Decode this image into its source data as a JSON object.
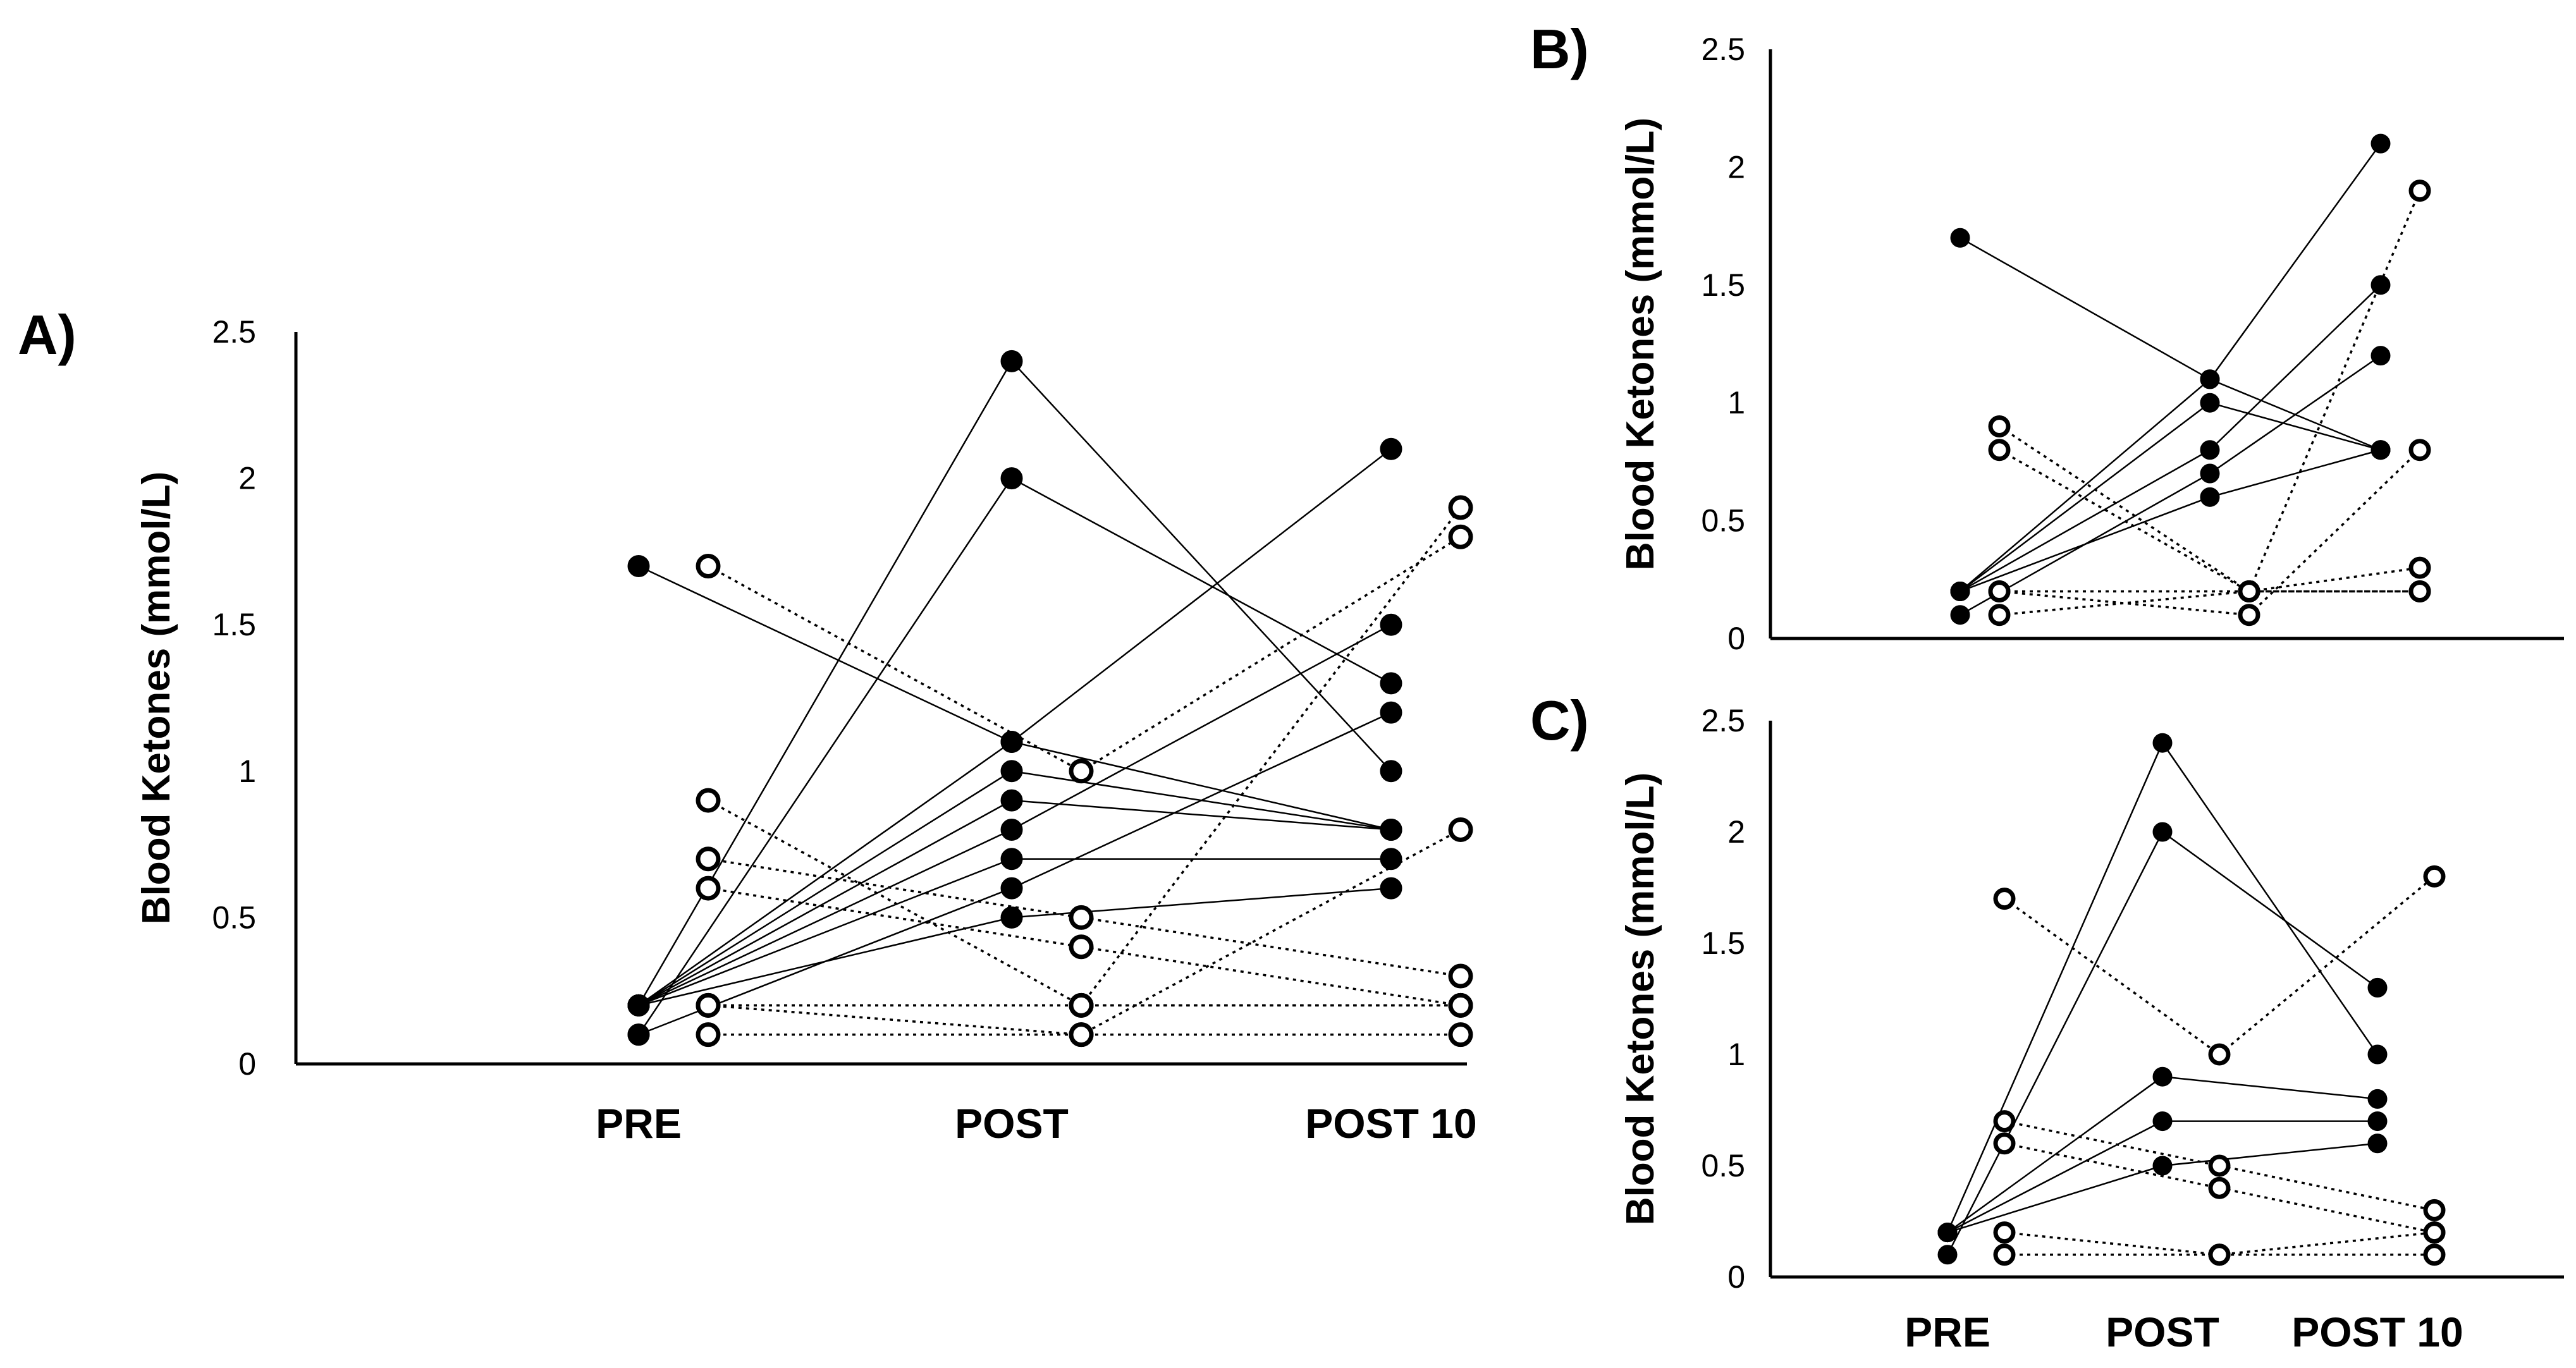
{
  "chart_data": [
    {
      "panel": "A)",
      "type": "line",
      "ylabel": "Blood Ketones (mmol/L)",
      "ylim": [
        0,
        2.5
      ],
      "yticks": [
        "0",
        "0.5",
        "1",
        "1.5",
        "2",
        "2.5"
      ],
      "categories": [
        "PRE",
        "POST",
        "POST 10"
      ],
      "series": [
        {
          "name": "filled-1",
          "marker": "filled",
          "values": [
            1.7,
            1.1,
            0.8
          ]
        },
        {
          "name": "filled-2",
          "marker": "filled",
          "values": [
            0.2,
            2.4,
            1.0
          ]
        },
        {
          "name": "filled-3",
          "marker": "filled",
          "values": [
            0.1,
            2.0,
            1.3
          ]
        },
        {
          "name": "filled-4",
          "marker": "filled",
          "values": [
            0.2,
            1.1,
            2.1
          ]
        },
        {
          "name": "filled-5",
          "marker": "filled",
          "values": [
            0.2,
            1.0,
            0.8
          ]
        },
        {
          "name": "filled-6",
          "marker": "filled",
          "values": [
            0.2,
            0.9,
            0.8
          ]
        },
        {
          "name": "filled-7",
          "marker": "filled",
          "values": [
            0.2,
            0.8,
            1.5
          ]
        },
        {
          "name": "filled-8",
          "marker": "filled",
          "values": [
            0.2,
            0.7,
            0.7
          ]
        },
        {
          "name": "filled-9",
          "marker": "filled",
          "values": [
            0.1,
            0.6,
            1.2
          ]
        },
        {
          "name": "filled-10",
          "marker": "filled",
          "values": [
            0.2,
            0.5,
            0.6
          ]
        },
        {
          "name": "open-1",
          "marker": "open",
          "values": [
            1.7,
            1.0,
            1.8
          ]
        },
        {
          "name": "open-2",
          "marker": "open",
          "values": [
            0.9,
            0.2,
            0.2
          ]
        },
        {
          "name": "open-3",
          "marker": "open",
          "values": [
            0.7,
            0.5,
            0.3
          ]
        },
        {
          "name": "open-4",
          "marker": "open",
          "values": [
            0.6,
            0.4,
            0.2
          ]
        },
        {
          "name": "open-5",
          "marker": "open",
          "values": [
            0.2,
            0.2,
            1.9
          ]
        },
        {
          "name": "open-6",
          "marker": "open",
          "values": [
            0.2,
            0.1,
            0.8
          ]
        },
        {
          "name": "open-7",
          "marker": "open",
          "values": [
            0.1,
            0.1,
            0.1
          ]
        },
        {
          "name": "open-8",
          "marker": "open",
          "values": [
            0.2,
            0.2,
            0.2
          ]
        }
      ]
    },
    {
      "panel": "B)",
      "type": "line",
      "ylabel": "Blood Ketones (mmol/L)",
      "ylim": [
        0,
        2.5
      ],
      "yticks": [
        "0",
        "0.5",
        "1",
        "1.5",
        "2",
        "2.5"
      ],
      "categories": [
        "PRE",
        "POST",
        "POST 10"
      ],
      "series": [
        {
          "name": "filled-1",
          "marker": "filled",
          "values": [
            1.7,
            1.1,
            0.8
          ]
        },
        {
          "name": "filled-2",
          "marker": "filled",
          "values": [
            0.2,
            1.1,
            2.1
          ]
        },
        {
          "name": "filled-3",
          "marker": "filled",
          "values": [
            0.2,
            1.0,
            0.8
          ]
        },
        {
          "name": "filled-4",
          "marker": "filled",
          "values": [
            0.2,
            0.8,
            1.5
          ]
        },
        {
          "name": "filled-5",
          "marker": "filled",
          "values": [
            0.1,
            0.7,
            1.2
          ]
        },
        {
          "name": "filled-6",
          "marker": "filled",
          "values": [
            0.2,
            0.6,
            0.8
          ]
        },
        {
          "name": "open-1",
          "marker": "open",
          "values": [
            0.9,
            0.2,
            0.2
          ]
        },
        {
          "name": "open-2",
          "marker": "open",
          "values": [
            0.8,
            0.2,
            0.2
          ]
        },
        {
          "name": "open-3",
          "marker": "open",
          "values": [
            0.2,
            0.2,
            1.9
          ]
        },
        {
          "name": "open-4",
          "marker": "open",
          "values": [
            0.2,
            0.1,
            0.8
          ]
        },
        {
          "name": "open-5",
          "marker": "open",
          "values": [
            0.1,
            0.2,
            0.3
          ]
        }
      ]
    },
    {
      "panel": "C)",
      "type": "line",
      "ylabel": "Blood Ketones (mmol/L)",
      "ylim": [
        0,
        2.5
      ],
      "yticks": [
        "0",
        "0.5",
        "1",
        "1.5",
        "2",
        "2.5"
      ],
      "categories": [
        "PRE",
        "POST",
        "POST 10"
      ],
      "series": [
        {
          "name": "filled-1",
          "marker": "filled",
          "values": [
            0.2,
            2.4,
            1.0
          ]
        },
        {
          "name": "filled-2",
          "marker": "filled",
          "values": [
            0.1,
            2.0,
            1.3
          ]
        },
        {
          "name": "filled-3",
          "marker": "filled",
          "values": [
            0.2,
            0.9,
            0.8
          ]
        },
        {
          "name": "filled-4",
          "marker": "filled",
          "values": [
            0.2,
            0.7,
            0.7
          ]
        },
        {
          "name": "filled-5",
          "marker": "filled",
          "values": [
            0.2,
            0.5,
            0.6
          ]
        },
        {
          "name": "open-1",
          "marker": "open",
          "values": [
            1.7,
            1.0,
            1.8
          ]
        },
        {
          "name": "open-2",
          "marker": "open",
          "values": [
            0.7,
            0.5,
            0.3
          ]
        },
        {
          "name": "open-3",
          "marker": "open",
          "values": [
            0.6,
            0.4,
            0.2
          ]
        },
        {
          "name": "open-4",
          "marker": "open",
          "values": [
            0.2,
            0.1,
            0.1
          ]
        },
        {
          "name": "open-5",
          "marker": "open",
          "values": [
            0.1,
            0.1,
            0.2
          ]
        }
      ]
    }
  ]
}
